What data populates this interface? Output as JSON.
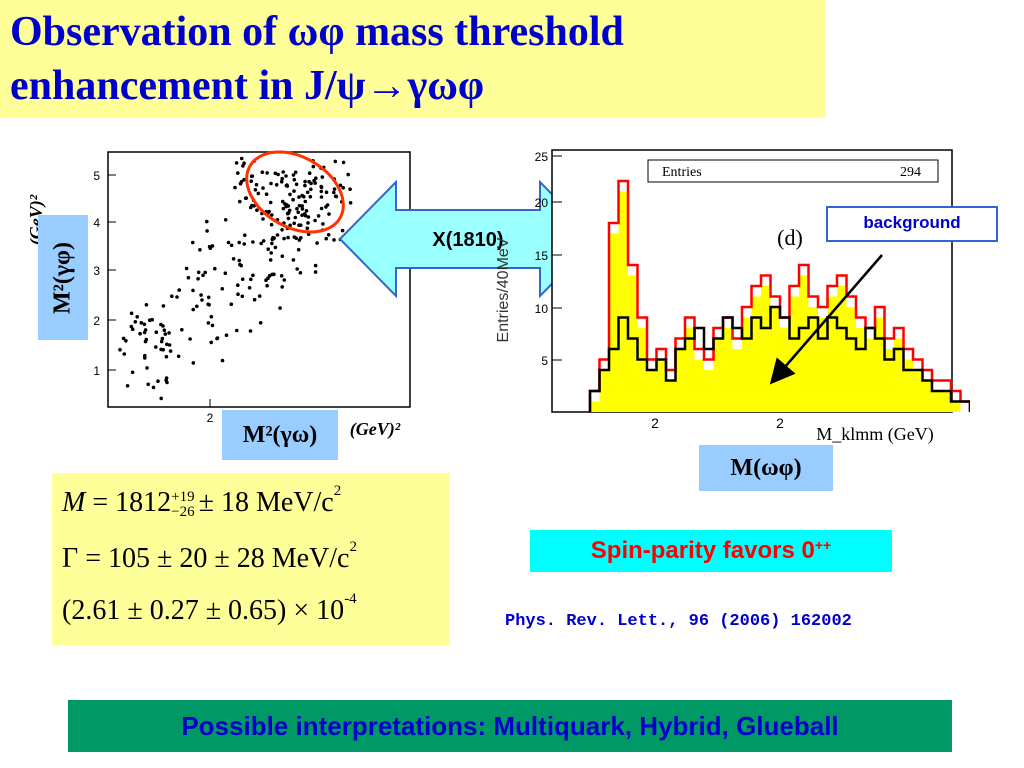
{
  "slide": {
    "title_line1": "Observation of ωφ mass threshold",
    "title_line2": "enhancement  in J/ψ→γωφ"
  },
  "labels": {
    "m2_gamma_phi": "M²(γφ)",
    "m2_gamma_omega": "M²(γω)",
    "m_omega_phi": "M(ωφ)",
    "x1810": "X(1810)",
    "background": "background"
  },
  "scatter": {
    "y_axis_label": "(GeV)²",
    "x_axis_label": "(GeV)²",
    "y_ticks": [
      "5",
      "4",
      "3",
      "2",
      "1"
    ],
    "x_ticks": [
      "2"
    ]
  },
  "histogram": {
    "panel_label": "(d)",
    "stats_name": "Entries",
    "stats_value": "294",
    "y_axis_label": "Entries/40MeV",
    "x_axis_label": "M_klmm (GeV)",
    "y_ticks": [
      "25",
      "20",
      "15",
      "10",
      "5"
    ],
    "x_ticks": [
      "2",
      "2"
    ]
  },
  "formulas": {
    "mass_prefix": "M",
    "mass_eq": "= 1812",
    "mass_sup": "+19",
    "mass_sub": "−26",
    "mass_rest": "± 18 MeV/c",
    "mass_exp": "2",
    "width_text": "Γ = 105 ± 20 ± 28 MeV/c",
    "width_exp": "2",
    "br_text": "(2.61 ± 0.27 ± 0.65) × 10",
    "br_exp": "-4"
  },
  "spin_parity": {
    "text": "Spin-parity favors 0",
    "sup": "++"
  },
  "reference": "Phys. Rev. Lett., 96 (2006) 162002",
  "interpretations": "Possible interpretations: Multiquark, Hybrid, Glueball",
  "colors": {
    "title_bg": "#ffff99",
    "title_text": "#0000cc",
    "label_bg": "#99ccff",
    "arrow_fill": "#99ffff",
    "spin_bg": "#00ffff",
    "spin_text": "#ff0000",
    "interp_bg": "#009966",
    "hist_fill": "#ffff00",
    "hist_outline": "#ff0000"
  }
}
